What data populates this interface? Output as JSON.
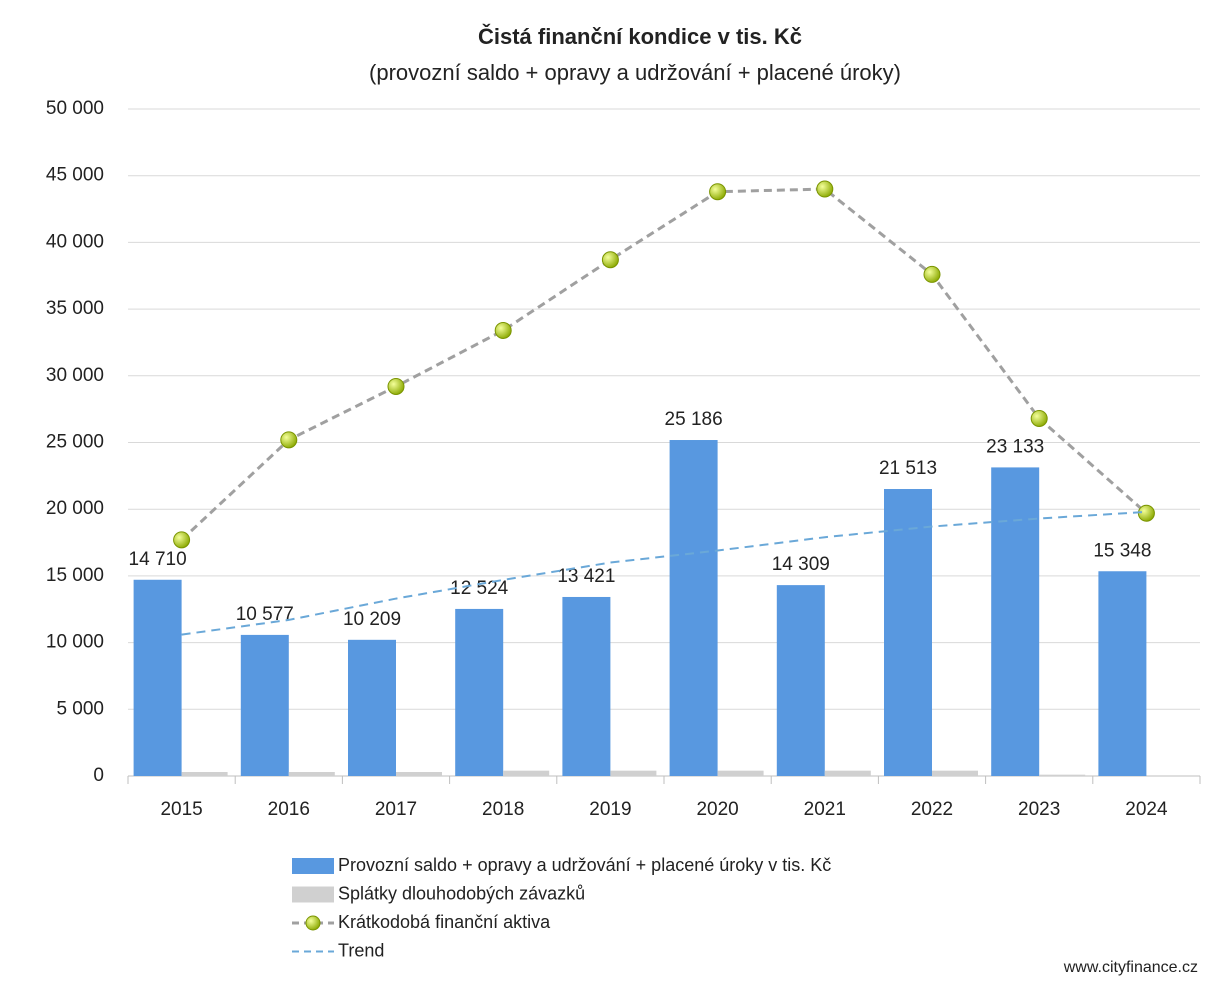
{
  "chart_data": {
    "type": "bar",
    "title": "Čistá finanční kondice v tis. Kč",
    "subtitle": "(provozní saldo + opravy a udržování + placené úroky)",
    "source": "www.cityfinance.cz",
    "categories": [
      "2015",
      "2016",
      "2017",
      "2018",
      "2019",
      "2020",
      "2021",
      "2022",
      "2023",
      "2024"
    ],
    "series": [
      {
        "name": "Provozní saldo + opravy a udržování + placené úroky v tis. Kč",
        "type": "bar",
        "color": "#5898e0",
        "values": [
          14710,
          10577,
          10209,
          12524,
          13421,
          25186,
          14309,
          21513,
          23133,
          15348
        ],
        "value_labels": [
          "14 710",
          "10 577",
          "10 209",
          "12 524",
          "13 421",
          "25 186",
          "14 309",
          "21 513",
          "23 133",
          "15 348"
        ]
      },
      {
        "name": "Splátky dlouhodobých závazků",
        "type": "bar",
        "color": "#d0d0d0",
        "values": [
          300,
          300,
          300,
          400,
          400,
          400,
          400,
          400,
          100,
          0
        ]
      },
      {
        "name": "Krátkodobá finanční aktiva",
        "type": "line",
        "color": "#a0a0a0",
        "marker_color": "#b8d820",
        "values": [
          17700,
          25200,
          29200,
          33400,
          38700,
          43800,
          44000,
          37600,
          26800,
          19700
        ]
      },
      {
        "name": "Trend",
        "type": "line",
        "color": "#6aa8d8",
        "values": [
          10600,
          11700,
          13300,
          14700,
          16000,
          16900,
          17900,
          18700,
          19300,
          19800
        ]
      }
    ],
    "ylim": [
      0,
      50000
    ],
    "yticks": [
      {
        "value": 0,
        "label": "0"
      },
      {
        "value": 5000,
        "label": "5 000"
      },
      {
        "value": 10000,
        "label": "10 000"
      },
      {
        "value": 15000,
        "label": "15 000"
      },
      {
        "value": 20000,
        "label": "20 000"
      },
      {
        "value": 25000,
        "label": "25 000"
      },
      {
        "value": 30000,
        "label": "30 000"
      },
      {
        "value": 35000,
        "label": "35 000"
      },
      {
        "value": 40000,
        "label": "40 000"
      },
      {
        "value": 45000,
        "label": "45 000"
      },
      {
        "value": 50000,
        "label": "50 000"
      }
    ],
    "grid": true,
    "legend": "bottom"
  }
}
